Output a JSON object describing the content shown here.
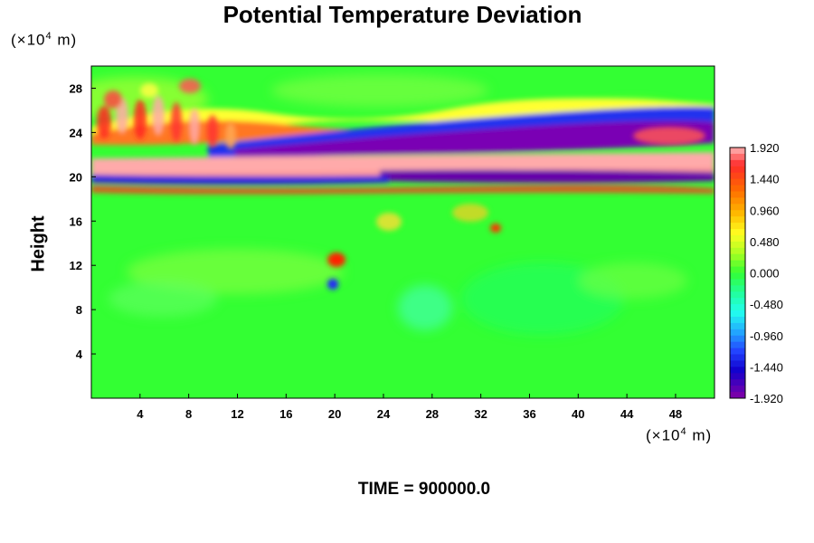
{
  "chart_data": {
    "type": "heatmap",
    "title": "Potential Temperature Deviation",
    "ylabel": "Height",
    "y_unit": "(×10⁴ m)",
    "x_unit": "(×10⁴ m)",
    "unit_base": "(×10",
    "unit_exp": "4",
    "unit_tail": " m)",
    "x_ticks": [
      "4",
      "8",
      "12",
      "16",
      "20",
      "24",
      "28",
      "32",
      "36",
      "40",
      "44",
      "48"
    ],
    "x_tick_values": [
      4,
      8,
      12,
      16,
      20,
      24,
      28,
      32,
      36,
      40,
      44,
      48
    ],
    "y_ticks": [
      "4",
      "8",
      "12",
      "16",
      "20",
      "24",
      "28"
    ],
    "y_tick_values": [
      4,
      8,
      12,
      16,
      20,
      24,
      28
    ],
    "xlim": [
      0,
      51.2
    ],
    "ylim": [
      0,
      30
    ],
    "colorbar": {
      "range": [
        -1.92,
        1.92
      ],
      "tick_labels": [
        "1.920",
        "1.440",
        "0.960",
        "0.480",
        "0.000",
        "-0.480",
        "-0.960",
        "-1.440",
        "-1.920"
      ],
      "tick_values": [
        1.92,
        1.44,
        0.96,
        0.48,
        0.0,
        -0.48,
        -0.96,
        -1.44,
        -1.92
      ]
    },
    "footer": "TIME = 900000.0"
  }
}
